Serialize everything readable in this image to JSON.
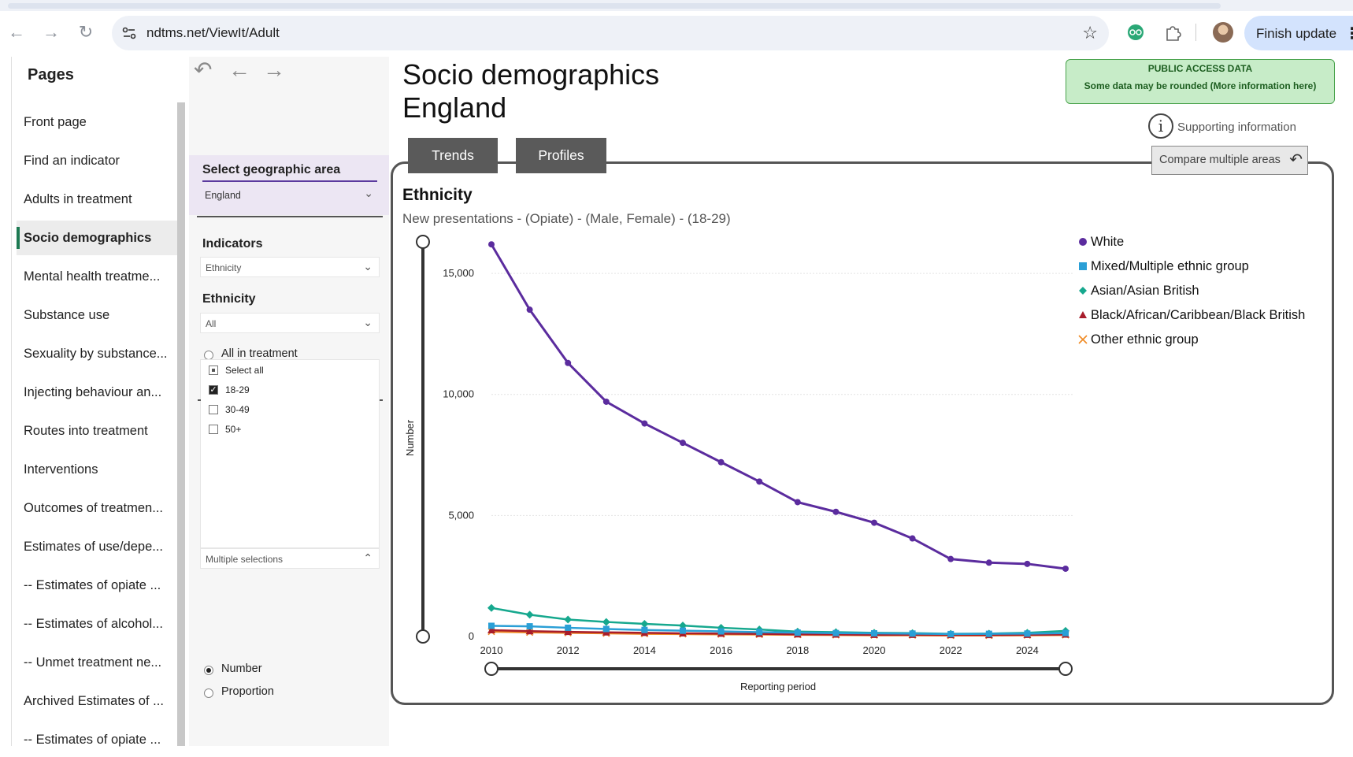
{
  "browser": {
    "url": "ndtms.net/ViewIt/Adult",
    "finish_update": "Finish update"
  },
  "sidebar": {
    "title": "Pages",
    "items": [
      {
        "label": "Front page",
        "active": false
      },
      {
        "label": "Find an indicator",
        "active": false
      },
      {
        "label": "Adults in treatment",
        "active": false
      },
      {
        "label": "Socio demographics",
        "active": true
      },
      {
        "label": "Mental health treatme...",
        "active": false
      },
      {
        "label": "Substance use",
        "active": false
      },
      {
        "label": "Sexuality by substance...",
        "active": false
      },
      {
        "label": "Injecting behaviour an...",
        "active": false
      },
      {
        "label": "Routes into treatment",
        "active": false
      },
      {
        "label": "Interventions",
        "active": false
      },
      {
        "label": "Outcomes of treatmen...",
        "active": false
      },
      {
        "label": "Estimates of use/depe...",
        "active": false
      },
      {
        "label": "-- Estimates of opiate ...",
        "active": false
      },
      {
        "label": "-- Estimates of alcohol...",
        "active": false
      },
      {
        "label": "-- Unmet treatment ne...",
        "active": false
      },
      {
        "label": "Archived Estimates of ...",
        "active": false
      },
      {
        "label": "-- Estimates of opiate ...",
        "active": false
      }
    ]
  },
  "filters": {
    "geo_label": "Select geographic area",
    "geo_value": "England",
    "indicators_label": "Indicators",
    "indicators_value": "Ethnicity",
    "ethnicity_label": "Ethnicity",
    "ethnicity_value": "All",
    "all_in_treatment": "All in treatment",
    "age_options": [
      {
        "label": "Select all",
        "state": "partial"
      },
      {
        "label": "18-29",
        "state": "checked"
      },
      {
        "label": "30-49",
        "state": "unchecked"
      },
      {
        "label": "50+",
        "state": "unchecked"
      }
    ],
    "multi_selection": "Multiple selections",
    "measure_options": [
      {
        "label": "Number",
        "selected": true
      },
      {
        "label": "Proportion",
        "selected": false
      }
    ]
  },
  "main": {
    "title_line1": "Socio demographics",
    "title_line2": "England",
    "public_title": "PUBLIC ACCESS DATA",
    "public_note": "Some data may be rounded (More information here)",
    "supporting_info": "Supporting information",
    "tabs": [
      "Trends",
      "Profiles"
    ],
    "compare_button": "Compare multiple areas"
  },
  "chart_data": {
    "type": "line",
    "title": "Ethnicity",
    "subtitle": "New presentations - (Opiate) - (Male, Female) - (18-29)",
    "xlabel": "Reporting period",
    "ylabel": "Number",
    "x": [
      2010,
      2011,
      2012,
      2013,
      2014,
      2015,
      2016,
      2017,
      2018,
      2019,
      2020,
      2021,
      2022,
      2023,
      2024,
      2025
    ],
    "x_ticks": [
      "2010",
      "2012",
      "2014",
      "2016",
      "2018",
      "2020",
      "2022",
      "2024"
    ],
    "y_ticks": [
      "0",
      "5,000",
      "10,000",
      "15,000"
    ],
    "ylim": [
      0,
      16500
    ],
    "grid": true,
    "legend_position": "right",
    "series": [
      {
        "name": "White",
        "color": "#5b2c9e",
        "marker": "circle",
        "values": [
          16200,
          13500,
          11300,
          9700,
          8800,
          8000,
          7200,
          6400,
          5550,
          5150,
          4700,
          4050,
          3200,
          3050,
          3000,
          2800
        ]
      },
      {
        "name": "Mixed/Multiple ethnic group",
        "color": "#2a9fd6",
        "marker": "square",
        "values": [
          440,
          420,
          360,
          310,
          270,
          240,
          210,
          180,
          160,
          140,
          130,
          120,
          100,
          110,
          120,
          140
        ]
      },
      {
        "name": "Asian/Asian British",
        "color": "#16a88e",
        "marker": "diamond",
        "values": [
          1180,
          900,
          700,
          600,
          520,
          450,
          360,
          290,
          200,
          180,
          150,
          140,
          110,
          120,
          150,
          230
        ]
      },
      {
        "name": "Black/African/Caribbean/Black British",
        "color": "#a81d2b",
        "marker": "triangle",
        "values": [
          260,
          220,
          190,
          170,
          150,
          130,
          120,
          110,
          90,
          80,
          70,
          70,
          60,
          60,
          70,
          80
        ]
      },
      {
        "name": "Other ethnic group",
        "color": "#f08a24",
        "marker": "x",
        "values": [
          200,
          170,
          150,
          130,
          110,
          100,
          90,
          80,
          70,
          60,
          50,
          50,
          40,
          40,
          50,
          60
        ]
      }
    ]
  }
}
